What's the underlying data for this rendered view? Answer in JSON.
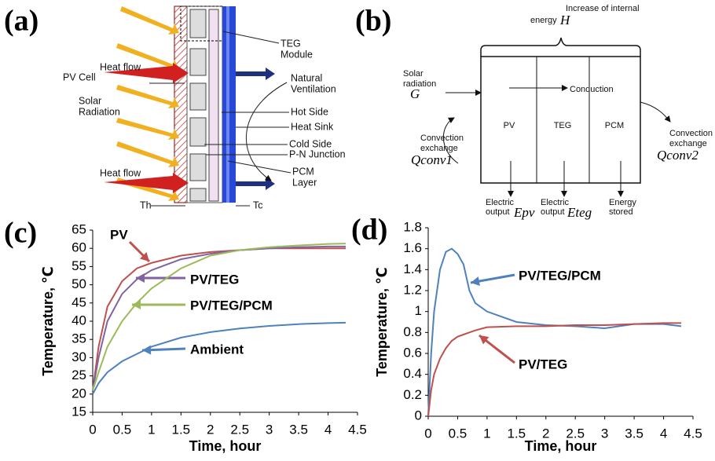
{
  "panels": [
    "(a)",
    "(b)",
    "(c)",
    "(d)"
  ],
  "diagram_a": {
    "labels": [
      [
        "TEG",
        "Module"
      ],
      [
        "Natural",
        "Ventilation"
      ],
      [
        "Hot Side"
      ],
      [
        "Heat Sink"
      ],
      [
        "Cold Side"
      ],
      [
        "P-N Junction"
      ],
      [
        "PCM",
        "Layer"
      ],
      [
        "Heat flow"
      ],
      [
        "PV Cell"
      ],
      [
        "Solar",
        "Radiation"
      ],
      [
        "Heat flow"
      ],
      [
        "Th"
      ],
      [
        "Tc"
      ]
    ]
  },
  "diagram_b": {
    "labels": [
      [
        "Increase of internal"
      ],
      [
        "energy"
      ],
      [
        "H"
      ],
      [
        "Solar",
        "radiation"
      ],
      [
        "G"
      ],
      [
        "Conduction"
      ],
      [
        "PV"
      ],
      [
        "TEG"
      ],
      [
        "PCM"
      ],
      [
        "Convection",
        "exchange"
      ],
      [
        "Qconv1"
      ],
      [
        "Convection",
        "exchange"
      ],
      [
        "Qconv2"
      ],
      [
        "Electric",
        "output"
      ],
      [
        "Epv"
      ],
      [
        "Electric",
        "output"
      ],
      [
        "Eteg"
      ],
      [
        "Energy",
        "stored"
      ]
    ]
  },
  "chart_data": [
    {
      "type": "line",
      "xlabel": "Time, hour",
      "ylabel": "Temperature, ℃",
      "x": [
        0,
        0.1,
        0.25,
        0.5,
        0.75,
        1,
        1.5,
        2,
        2.5,
        3,
        3.5,
        4,
        4.3
      ],
      "series": [
        {
          "name": "PV",
          "color": "#c0504d",
          "values": [
            21,
            33,
            44,
            51,
            54.5,
            56,
            58,
            59,
            59.5,
            60,
            60,
            60,
            60
          ]
        },
        {
          "name": "PV/TEG",
          "color": "#8064a2",
          "values": [
            21,
            30,
            40,
            47.5,
            51.5,
            54,
            57,
            58.5,
            59.5,
            60,
            60.3,
            60.5,
            60.5
          ]
        },
        {
          "name": "PV/TEG/PCM",
          "color": "#9bbb59",
          "values": [
            21,
            26,
            33,
            40,
            45,
            49,
            54.5,
            58,
            59.5,
            60.3,
            60.8,
            61.2,
            61.3
          ]
        },
        {
          "name": "Ambient",
          "color": "#4f81bd",
          "values": [
            20,
            23,
            26,
            29,
            31,
            33,
            35.5,
            37,
            38,
            38.7,
            39.2,
            39.5,
            39.6
          ]
        }
      ],
      "xlim": [
        0,
        4.5
      ],
      "xticks": [
        0,
        0.5,
        1,
        1.5,
        2,
        2.5,
        3,
        3.5,
        4,
        4.5
      ],
      "ylim": [
        15,
        65
      ],
      "yticks": [
        15,
        20,
        25,
        30,
        35,
        40,
        45,
        50,
        55,
        60,
        65
      ]
    },
    {
      "type": "line",
      "xlabel": "Time, hour",
      "ylabel": "Temperature, ℃",
      "x": [
        0,
        0.05,
        0.1,
        0.2,
        0.3,
        0.4,
        0.5,
        0.6,
        0.7,
        0.8,
        1,
        1.5,
        2,
        2.5,
        3,
        3.5,
        4,
        4.3
      ],
      "series": [
        {
          "name": "PV/TEG/PCM",
          "color": "#4f81bd",
          "values": [
            0,
            0.6,
            1.0,
            1.4,
            1.57,
            1.6,
            1.55,
            1.45,
            1.2,
            1.08,
            1.0,
            0.9,
            0.87,
            0.86,
            0.84,
            0.88,
            0.88,
            0.86
          ]
        },
        {
          "name": "PV/TEG",
          "color": "#c0504d",
          "values": [
            0,
            0.25,
            0.4,
            0.55,
            0.65,
            0.72,
            0.76,
            0.78,
            0.8,
            0.82,
            0.85,
            0.86,
            0.86,
            0.87,
            0.87,
            0.88,
            0.89,
            0.89
          ]
        }
      ],
      "xlim": [
        0,
        4.5
      ],
      "xticks": [
        0,
        0.5,
        1,
        1.5,
        2,
        2.5,
        3,
        3.5,
        4,
        4.5
      ],
      "ylim": [
        0,
        1.8
      ],
      "yticks": [
        0,
        0.2,
        0.4,
        0.6,
        0.8,
        1,
        1.2,
        1.4,
        1.6,
        1.8
      ]
    }
  ]
}
